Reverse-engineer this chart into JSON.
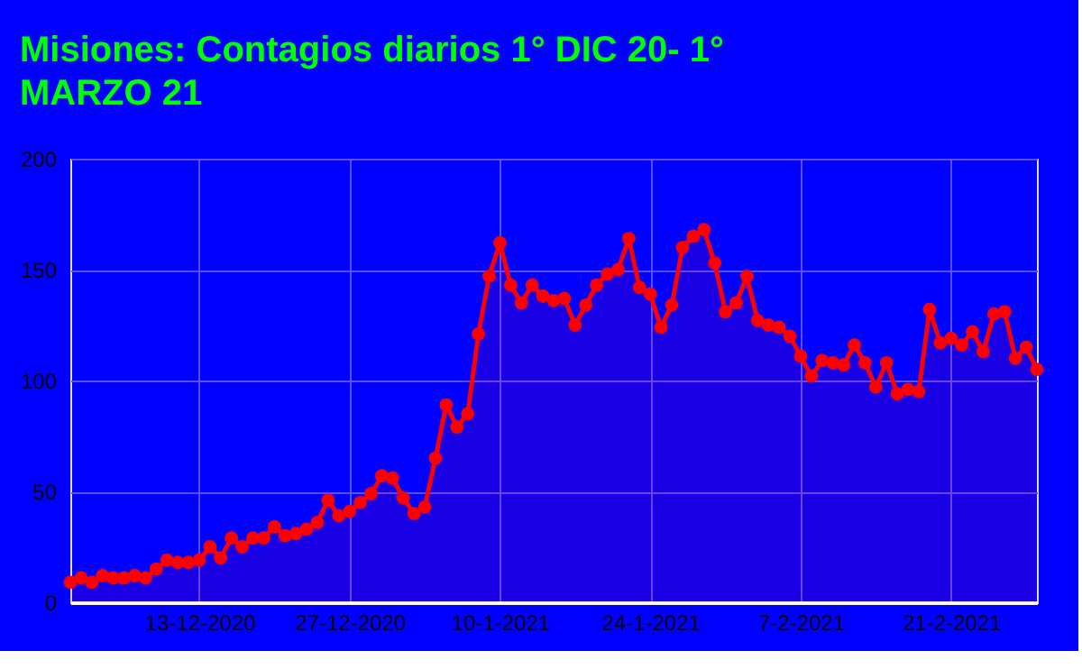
{
  "chart_data": {
    "type": "area",
    "title": "Misiones: Contagios diarios 1° DIC 20- 1° MARZO 21",
    "x": [
      "2020-12-01",
      "2020-12-02",
      "2020-12-03",
      "2020-12-04",
      "2020-12-05",
      "2020-12-06",
      "2020-12-07",
      "2020-12-08",
      "2020-12-09",
      "2020-12-10",
      "2020-12-11",
      "2020-12-12",
      "2020-12-13",
      "2020-12-14",
      "2020-12-15",
      "2020-12-16",
      "2020-12-17",
      "2020-12-18",
      "2020-12-19",
      "2020-12-20",
      "2020-12-21",
      "2020-12-22",
      "2020-12-23",
      "2020-12-24",
      "2020-12-25",
      "2020-12-26",
      "2020-12-27",
      "2020-12-28",
      "2020-12-29",
      "2020-12-30",
      "2020-12-31",
      "2021-01-01",
      "2021-01-02",
      "2021-01-03",
      "2021-01-04",
      "2021-01-05",
      "2021-01-06",
      "2021-01-07",
      "2021-01-08",
      "2021-01-09",
      "2021-01-10",
      "2021-01-11",
      "2021-01-12",
      "2021-01-13",
      "2021-01-14",
      "2021-01-15",
      "2021-01-16",
      "2021-01-17",
      "2021-01-18",
      "2021-01-19",
      "2021-01-20",
      "2021-01-21",
      "2021-01-22",
      "2021-01-23",
      "2021-01-24",
      "2021-01-25",
      "2021-01-26",
      "2021-01-27",
      "2021-01-28",
      "2021-01-29",
      "2021-01-30",
      "2021-01-31",
      "2021-02-01",
      "2021-02-02",
      "2021-02-03",
      "2021-02-04",
      "2021-02-05",
      "2021-02-06",
      "2021-02-07",
      "2021-02-08",
      "2021-02-09",
      "2021-02-10",
      "2021-02-11",
      "2021-02-12",
      "2021-02-13",
      "2021-02-14",
      "2021-02-15",
      "2021-02-16",
      "2021-02-17",
      "2021-02-18",
      "2021-02-19",
      "2021-02-20",
      "2021-02-21",
      "2021-02-22",
      "2021-02-23",
      "2021-02-24",
      "2021-02-25",
      "2021-02-26",
      "2021-02-27",
      "2021-02-28",
      "2021-03-01"
    ],
    "series": [
      {
        "color": "#ff0000",
        "values": [
          9,
          11,
          9,
          12,
          11,
          11,
          12,
          11,
          15,
          19,
          18,
          18,
          19,
          25,
          20,
          29,
          25,
          29,
          29,
          34,
          30,
          31,
          33,
          36,
          46,
          39,
          41,
          45,
          49,
          57,
          56,
          47,
          40,
          43,
          65,
          89,
          79,
          85,
          121,
          147,
          162,
          143,
          135,
          143,
          138,
          136,
          137,
          125,
          134,
          143,
          148,
          150,
          164,
          142,
          139,
          124,
          134,
          160,
          165,
          168,
          153,
          131,
          135,
          147,
          127,
          125,
          124,
          120,
          111,
          102,
          109,
          108,
          107,
          116,
          108,
          97,
          108,
          94,
          96,
          95,
          132,
          117,
          119,
          116,
          122,
          113,
          130,
          131,
          110,
          115,
          105
        ]
      }
    ],
    "xlim": [
      "2020-12-01",
      "2021-03-01"
    ],
    "xticks": [
      {
        "value": "2020-12-13",
        "label": "13-12-2020"
      },
      {
        "value": "2020-12-27",
        "label": "27-12-2020"
      },
      {
        "value": "2021-01-10",
        "label": "10-1-2021"
      },
      {
        "value": "2021-01-24",
        "label": "24-1-2021"
      },
      {
        "value": "2021-02-07",
        "label": "7-2-2021"
      },
      {
        "value": "2021-02-21",
        "label": "21-2-2021"
      }
    ],
    "ylim": [
      0,
      200
    ],
    "yticks": [
      0,
      50,
      100,
      150,
      200
    ],
    "grid": true,
    "marker": "circle",
    "line_style": "solid"
  }
}
